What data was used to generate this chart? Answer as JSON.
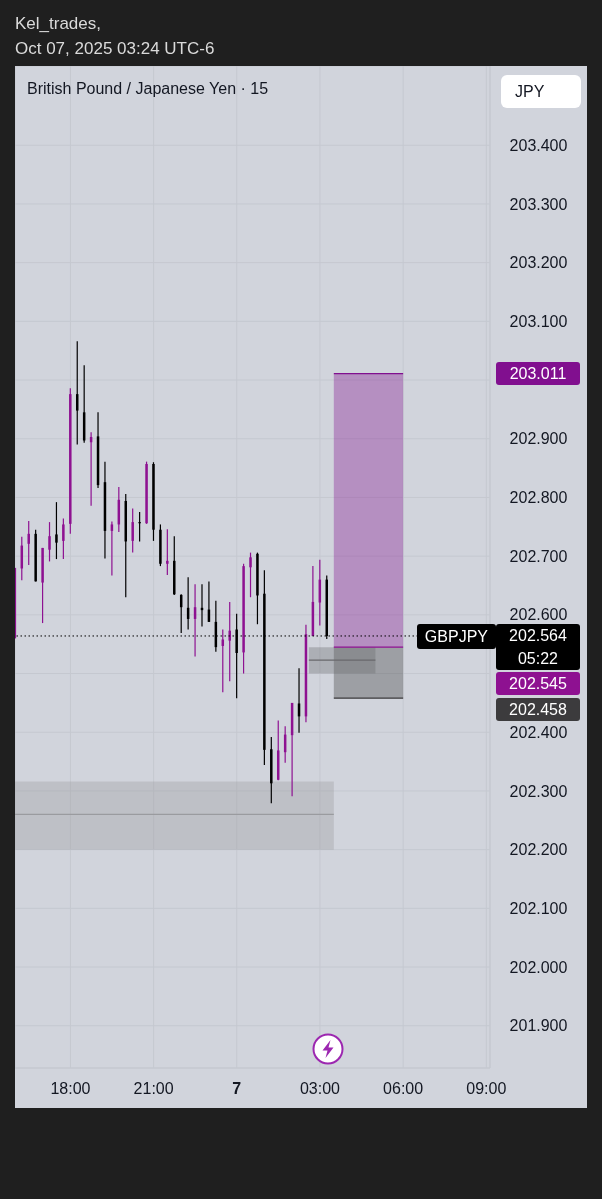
{
  "chart_data": {
    "type": "candlestick",
    "title": "British Pound / Japanese Yen · 15",
    "ylabel": "JPY",
    "x": [
      "2025-10-06T16:00",
      "2025-10-06T16:15",
      "2025-10-06T16:30",
      "2025-10-06T16:45",
      "2025-10-06T17:00",
      "2025-10-06T17:15",
      "2025-10-06T17:30",
      "2025-10-06T17:45",
      "2025-10-06T18:00",
      "2025-10-06T18:15",
      "2025-10-06T18:30",
      "2025-10-06T18:45",
      "2025-10-06T19:00",
      "2025-10-06T19:15",
      "2025-10-06T19:30",
      "2025-10-06T19:45",
      "2025-10-06T20:00",
      "2025-10-06T20:15",
      "2025-10-06T20:30",
      "2025-10-06T20:45",
      "2025-10-06T21:00",
      "2025-10-06T21:15",
      "2025-10-06T21:30",
      "2025-10-06T21:45",
      "2025-10-06T22:00",
      "2025-10-06T22:15",
      "2025-10-06T22:30",
      "2025-10-06T22:45",
      "2025-10-06T23:00",
      "2025-10-06T23:15",
      "2025-10-06T23:30",
      "2025-10-06T23:45",
      "2025-10-07T00:00",
      "2025-10-07T00:15",
      "2025-10-07T00:30",
      "2025-10-07T00:45",
      "2025-10-07T01:00",
      "2025-10-07T01:15",
      "2025-10-07T01:30",
      "2025-10-07T01:45",
      "2025-10-07T02:00",
      "2025-10-07T02:15",
      "2025-10-07T02:30",
      "2025-10-07T02:45",
      "2025-10-07T03:00",
      "2025-10-07T03:15"
    ],
    "ohlc": [
      [
        202.56,
        202.68,
        202.56,
        202.68
      ],
      [
        202.679,
        202.733,
        202.659,
        202.718
      ],
      [
        202.721,
        202.76,
        202.685,
        202.738
      ],
      [
        202.738,
        202.745,
        202.657,
        202.657
      ],
      [
        202.655,
        202.714,
        202.586,
        202.714
      ],
      [
        202.711,
        202.758,
        202.691,
        202.734
      ],
      [
        202.737,
        202.792,
        202.695,
        202.723
      ],
      [
        202.726,
        202.764,
        202.695,
        202.754
      ],
      [
        202.755,
        202.986,
        202.738,
        202.976
      ],
      [
        202.976,
        203.066,
        202.89,
        202.948
      ],
      [
        202.945,
        203.025,
        202.893,
        202.897
      ],
      [
        202.894,
        202.911,
        202.786,
        202.903
      ],
      [
        202.904,
        202.945,
        202.816,
        202.821
      ],
      [
        202.826,
        202.861,
        202.696,
        202.743
      ],
      [
        202.743,
        202.759,
        202.667,
        202.754
      ],
      [
        202.754,
        202.818,
        202.741,
        202.796
      ],
      [
        202.794,
        202.806,
        202.63,
        202.725
      ],
      [
        202.726,
        202.781,
        202.706,
        202.758
      ],
      [
        202.758,
        202.775,
        202.725,
        202.756
      ],
      [
        202.756,
        202.861,
        202.755,
        202.857
      ],
      [
        202.857,
        202.86,
        202.726,
        202.745
      ],
      [
        202.745,
        202.754,
        202.683,
        202.687
      ],
      [
        202.687,
        202.746,
        202.668,
        202.692
      ],
      [
        202.692,
        202.734,
        202.634,
        202.635
      ],
      [
        202.634,
        202.635,
        202.569,
        202.613
      ],
      [
        202.612,
        202.664,
        202.575,
        202.593
      ],
      [
        202.593,
        202.652,
        202.529,
        202.613
      ],
      [
        202.612,
        202.652,
        202.58,
        202.608
      ],
      [
        202.609,
        202.657,
        202.588,
        202.588
      ],
      [
        202.588,
        202.624,
        202.537,
        202.545
      ],
      [
        202.547,
        202.575,
        202.468,
        202.558
      ],
      [
        202.556,
        202.622,
        202.487,
        202.573
      ],
      [
        202.575,
        202.602,
        202.458,
        202.535
      ],
      [
        202.536,
        202.687,
        202.5,
        202.683
      ],
      [
        202.681,
        202.706,
        202.63,
        202.698
      ],
      [
        202.704,
        202.706,
        202.584,
        202.633
      ],
      [
        202.636,
        202.676,
        202.344,
        202.37
      ],
      [
        202.371,
        202.392,
        202.279,
        202.313
      ],
      [
        202.319,
        202.42,
        202.318,
        202.369
      ],
      [
        202.366,
        202.41,
        202.348,
        202.396
      ],
      [
        202.395,
        202.45,
        202.291,
        202.45
      ],
      [
        202.449,
        202.509,
        202.399,
        202.427
      ],
      [
        202.427,
        202.583,
        202.417,
        202.567
      ],
      [
        202.564,
        202.683,
        202.564,
        202.622
      ],
      [
        202.621,
        202.694,
        202.582,
        202.66
      ],
      [
        202.66,
        202.667,
        202.559,
        202.564
      ]
    ],
    "colors": [
      "#8e1191",
      "#8e1191",
      "#8e1191",
      "#000000",
      "#8e1191",
      "#8e1191",
      "#000000",
      "#8e1191",
      "#8e1191",
      "#000000",
      "#000000",
      "#8e1191",
      "#000000",
      "#000000",
      "#8e1191",
      "#8e1191",
      "#000000",
      "#8e1191",
      "#000000",
      "#8e1191",
      "#000000",
      "#000000",
      "#8e1191",
      "#000000",
      "#000000",
      "#000000",
      "#8e1191",
      "#000000",
      "#000000",
      "#000000",
      "#8e1191",
      "#8e1191",
      "#000000",
      "#8e1191",
      "#8e1191",
      "#000000",
      "#000000",
      "#000000",
      "#8e1191",
      "#8e1191",
      "#8e1191",
      "#000000",
      "#8e1191",
      "#8e1191",
      "#8e1191",
      "#000000"
    ],
    "series": [
      {
        "type": "line",
        "x": [
          "2025-10-06T16:00",
          "2025-10-07T03:30"
        ],
        "values": [
          202.26,
          202.26
        ],
        "lower": [
          202.2,
          202.2
        ],
        "upper": [
          202.316,
          202.316
        ],
        "color": "#9a9b9f"
      },
      {
        "type": "line",
        "x": [
          "2025-10-07T03:30",
          "2025-10-07T06:00"
        ],
        "values": [
          203.011,
          203.011
        ],
        "lower": [
          202.545,
          202.545
        ],
        "upper": [
          203.011,
          203.011
        ],
        "color": "#810f8f"
      },
      {
        "type": "line",
        "x": [
          "2025-10-07T03:30",
          "2025-10-07T06:00"
        ],
        "values": [
          202.458,
          202.458
        ],
        "lower": [
          202.458,
          202.458
        ],
        "upper": [
          202.545,
          202.545
        ],
        "color": "#3c3b3d"
      },
      {
        "type": "line",
        "x": [
          "2025-10-07T02:36",
          "2025-10-07T05:00"
        ],
        "values": [
          202.523,
          202.523
        ],
        "lower": [
          202.5,
          202.5
        ],
        "upper": [
          202.545,
          202.545
        ],
        "color": "#68696d"
      },
      {
        "type": "line",
        "x": [
          "2025-10-07T03:30",
          "2025-10-07T06:00"
        ],
        "values": [
          202.545,
          202.545
        ],
        "color": "#8e1191"
      }
    ],
    "xlim": [
      "2025-10-06T16:00",
      "2025-10-07T09:08"
    ],
    "xticks": [
      {
        "value": "2025-10-06T18:00",
        "label": "18:00"
      },
      {
        "value": "2025-10-06T21:00",
        "label": "21:00"
      },
      {
        "value": "2025-10-07T00:00",
        "label": "7"
      },
      {
        "value": "2025-10-07T03:00",
        "label": "03:00"
      },
      {
        "value": "2025-10-07T06:00",
        "label": "06:00"
      },
      {
        "value": "2025-10-07T09:00",
        "label": "09:00"
      }
    ],
    "ylim": [
      201.828,
      203.535
    ],
    "yticks": [
      {
        "value": 201.9,
        "label": "201.900"
      },
      {
        "value": 202,
        "label": "202.000"
      },
      {
        "value": 202.1,
        "label": "202.100"
      },
      {
        "value": 202.2,
        "label": "202.200"
      },
      {
        "value": 202.3,
        "label": "202.300"
      },
      {
        "value": 202.4,
        "label": "202.400"
      },
      {
        "value": 202.5,
        "label": null
      },
      {
        "value": 202.6,
        "label": "202.600"
      },
      {
        "value": 202.7,
        "label": "202.700"
      },
      {
        "value": 202.8,
        "label": "202.800"
      },
      {
        "value": 202.9,
        "label": "202.900"
      },
      {
        "value": 203,
        "label": null
      },
      {
        "value": 203.1,
        "label": "203.100"
      },
      {
        "value": 203.2,
        "label": "203.200"
      },
      {
        "value": 203.3,
        "label": "203.300"
      },
      {
        "value": 203.4,
        "label": "203.400"
      }
    ],
    "grid": true,
    "ref_lines": [
      {
        "axis": "y",
        "value": 202.564,
        "label": "GBPJPY",
        "color": "#000000",
        "line_style": "dotted"
      }
    ],
    "annotations": [
      "Kel_trades,",
      "Oct 07, 2025 03:24 UTC-6",
      "203.011",
      "202.564",
      "05:22",
      "202.545",
      "202.458"
    ]
  }
}
